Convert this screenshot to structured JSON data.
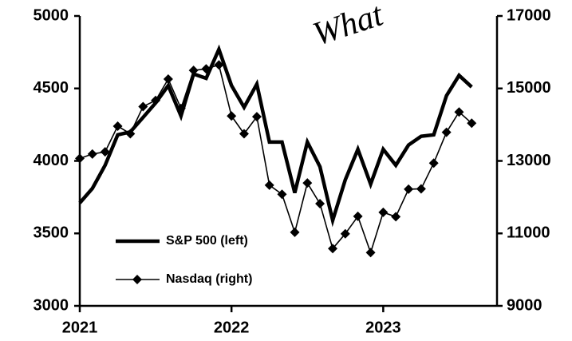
{
  "chart_data": {
    "type": "line",
    "annotations": [
      "What"
    ],
    "x": [
      2021,
      2021.083,
      2021.167,
      2021.25,
      2021.333,
      2021.417,
      2021.5,
      2021.583,
      2021.667,
      2021.75,
      2021.833,
      2021.917,
      2022,
      2022.083,
      2022.167,
      2022.25,
      2022.333,
      2022.417,
      2022.5,
      2022.583,
      2022.667,
      2022.75,
      2022.833,
      2022.917,
      2023,
      2023.083,
      2023.167,
      2023.25,
      2023.333,
      2023.417,
      2023.5,
      2023.583
    ],
    "series": [
      {
        "name": "S&P 500 (left)",
        "color": "#000000",
        "axis": "y",
        "values": [
          3710,
          3810,
          3970,
          4180,
          4200,
          4300,
          4400,
          4520,
          4310,
          4600,
          4570,
          4770,
          4520,
          4370,
          4530,
          4130,
          4130,
          3780,
          4130,
          3960,
          3590,
          3870,
          4080,
          3840,
          4080,
          3970,
          4110,
          4170,
          4180,
          4450,
          4590,
          4510
        ]
      },
      {
        "name": "Nasdaq (right)",
        "color": "#000000",
        "axis": "y2",
        "values": [
          13070,
          13190,
          13250,
          13960,
          13750,
          14500,
          14670,
          15260,
          14450,
          15500,
          15540,
          15650,
          14240,
          13750,
          14220,
          12330,
          12080,
          11030,
          12390,
          11820,
          10580,
          10990,
          11470,
          10470,
          11580,
          11460,
          12220,
          12230,
          12940,
          13790,
          14350,
          14040
        ]
      }
    ],
    "xlim": [
      2021,
      2023.75
    ],
    "xticks": [
      2021,
      2022,
      2023
    ],
    "ylim": [
      3000,
      5000
    ],
    "yticks": [
      3000,
      3500,
      4000,
      4500,
      5000
    ],
    "y2lim": [
      9000,
      17000
    ],
    "y2ticks": [
      9000,
      11000,
      13000,
      15000,
      17000
    ],
    "legend": "lower-left",
    "grid": false
  }
}
